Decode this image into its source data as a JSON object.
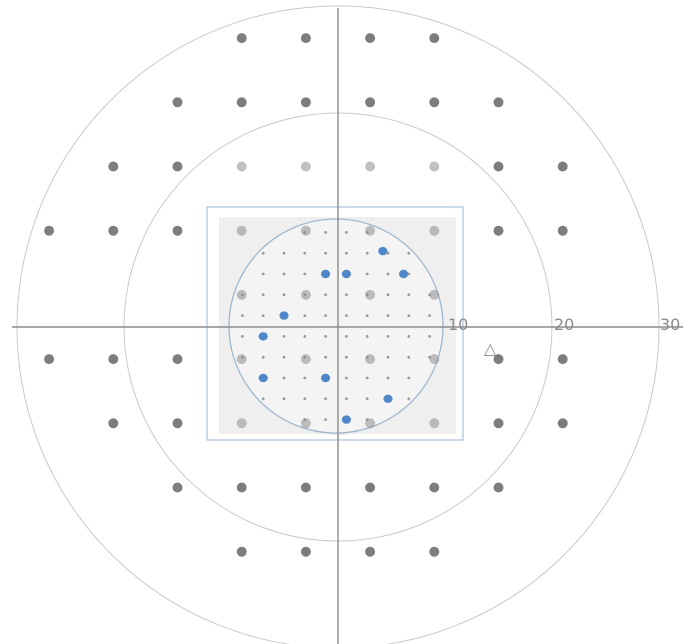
{
  "scale_labels": {
    "r10": "10",
    "r20": "20",
    "r30": "30"
  },
  "blind_spot_symbol": "△",
  "colors": {
    "background": "#ffffff",
    "axis": "#8c8c8c",
    "ring": "#c9c9c9",
    "test_point": "#7d7d7d",
    "inset_fill": "#efefef",
    "inset_border": "#9bb6d6",
    "inner_circle": "#9fb7cf",
    "highlight_point": "#4f88c8"
  },
  "chart_data": {
    "type": "scatter",
    "x_unit": "degrees",
    "y_unit": "degrees",
    "rings_deg": [
      10,
      20,
      30
    ],
    "outer_grid_points": [
      [
        -9,
        27
      ],
      [
        -3,
        27
      ],
      [
        3,
        27
      ],
      [
        9,
        27
      ],
      [
        -15,
        21
      ],
      [
        -9,
        21
      ],
      [
        -3,
        21
      ],
      [
        3,
        21
      ],
      [
        9,
        21
      ],
      [
        15,
        21
      ],
      [
        -21,
        15
      ],
      [
        -15,
        15
      ],
      [
        21,
        15
      ],
      [
        15,
        15
      ],
      [
        -27,
        9
      ],
      [
        -21,
        9
      ],
      [
        -15,
        9
      ],
      [
        15,
        9
      ],
      [
        21,
        9
      ],
      [
        -27,
        -3
      ],
      [
        -21,
        -3
      ],
      [
        -15,
        -3
      ],
      [
        15,
        -3
      ],
      [
        21,
        -3
      ],
      [
        -21,
        -9
      ],
      [
        -15,
        -9
      ],
      [
        15,
        -9
      ],
      [
        21,
        -9
      ],
      [
        -15,
        -15
      ],
      [
        -9,
        -15
      ],
      [
        -3,
        -15
      ],
      [
        3,
        -15
      ],
      [
        9,
        -15
      ],
      [
        15,
        -15
      ],
      [
        -9,
        -21
      ],
      [
        -3,
        -21
      ],
      [
        3,
        -21
      ],
      [
        9,
        -21
      ]
    ],
    "inset_grid_points": [
      [
        -9,
        15
      ],
      [
        -3,
        15
      ],
      [
        3,
        15
      ],
      [
        9,
        15
      ],
      [
        -9,
        9
      ],
      [
        -3,
        9
      ],
      [
        3,
        9
      ],
      [
        9,
        9
      ],
      [
        -9,
        3
      ],
      [
        -3,
        3
      ],
      [
        3,
        3
      ],
      [
        9,
        3
      ],
      [
        -9,
        -3
      ],
      [
        -3,
        -3
      ],
      [
        3,
        -3
      ],
      [
        9,
        -3
      ],
      [
        -9,
        -9
      ],
      [
        -3,
        -9
      ],
      [
        3,
        -9
      ],
      [
        9,
        -9
      ]
    ],
    "highlighted_points": [
      [
        4.5,
        7.2
      ],
      [
        -1,
        5
      ],
      [
        1,
        5
      ],
      [
        6.5,
        5
      ],
      [
        -5,
        1
      ],
      [
        -7,
        -1
      ],
      [
        -7,
        -5
      ],
      [
        -1,
        -5
      ],
      [
        5,
        -7
      ],
      [
        1,
        -9
      ]
    ]
  }
}
